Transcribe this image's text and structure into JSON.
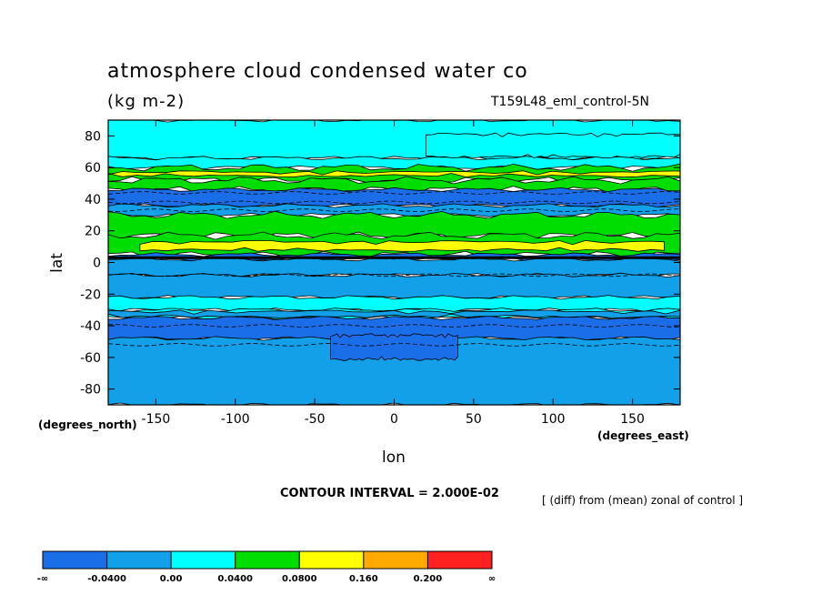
{
  "chart_data": {
    "type": "contour",
    "title": "atmosphere cloud condensed water co",
    "units": "(kg m-2)",
    "run_id": "T159L48_eml_control-5N",
    "xlabel": "lon",
    "ylabel": "lat",
    "x_unit_label": "(degrees_east)",
    "y_unit_label": "(degrees_north)",
    "xlim": [
      -180,
      180
    ],
    "ylim": [
      -90,
      90
    ],
    "x_ticks": [
      -150,
      -100,
      -50,
      0,
      50,
      100,
      150
    ],
    "x_tick_labels": [
      "-150",
      "-100",
      "-50",
      "0",
      "50",
      "100",
      "150"
    ],
    "y_ticks": [
      80,
      60,
      40,
      20,
      0,
      -20,
      -40,
      -60,
      -80
    ],
    "y_tick_labels": [
      "80",
      "60",
      "40",
      "20",
      "0",
      "-20",
      "-40",
      "-60",
      "-80"
    ],
    "contour_interval_text": "CONTOUR INTERVAL = 2.000E-02",
    "note": "[ (diff) from (mean) zonal of control ]",
    "colorbar": {
      "colors": [
        "#1a6ee8",
        "#12a0e8",
        "#00ffff",
        "#00dd00",
        "#ffff00",
        "#ffaa00",
        "#ff2020"
      ],
      "labels": [
        "-∞",
        "-0.0400",
        "0.00",
        "0.0400",
        "0.0800",
        "0.160",
        "0.200",
        "∞"
      ]
    },
    "zonal_bands": [
      {
        "lat_range": [
          66,
          90
        ],
        "level_index": 2
      },
      {
        "lat_range": [
          60,
          66
        ],
        "level_index": 2
      },
      {
        "lat_range": [
          52,
          60
        ],
        "level_index": 3
      },
      {
        "lat_range": [
          46,
          52
        ],
        "level_index": 3
      },
      {
        "lat_range": [
          36,
          46
        ],
        "level_index": 0
      },
      {
        "lat_range": [
          30,
          36
        ],
        "level_index": 1
      },
      {
        "lat_range": [
          17,
          30
        ],
        "level_index": 3
      },
      {
        "lat_range": [
          5,
          17
        ],
        "level_index": 3
      },
      {
        "lat_range": [
          2,
          5
        ],
        "level_index": 0
      },
      {
        "lat_range": [
          -8,
          2
        ],
        "level_index": 1
      },
      {
        "lat_range": [
          -22,
          -8
        ],
        "level_index": 1
      },
      {
        "lat_range": [
          -30,
          -22
        ],
        "level_index": 2
      },
      {
        "lat_range": [
          -35,
          -30
        ],
        "level_index": 2
      },
      {
        "lat_range": [
          -48,
          -35
        ],
        "level_index": 0
      },
      {
        "lat_range": [
          -90,
          -48
        ],
        "level_index": 1
      }
    ],
    "patches": [
      {
        "lon": [
          20,
          180
        ],
        "lat": [
          66,
          82
        ],
        "level_index": 2
      },
      {
        "lon": [
          -180,
          180
        ],
        "lat": [
          54,
          58
        ],
        "level_index": 4
      },
      {
        "lon": [
          -160,
          170
        ],
        "lat": [
          7,
          14
        ],
        "level_index": 4
      },
      {
        "lon": [
          -40,
          40
        ],
        "lat": [
          -62,
          -45
        ],
        "level_index": 0
      },
      {
        "lon": [
          -180,
          180
        ],
        "lat": [
          -35,
          -30
        ],
        "level_index": 1
      }
    ]
  }
}
